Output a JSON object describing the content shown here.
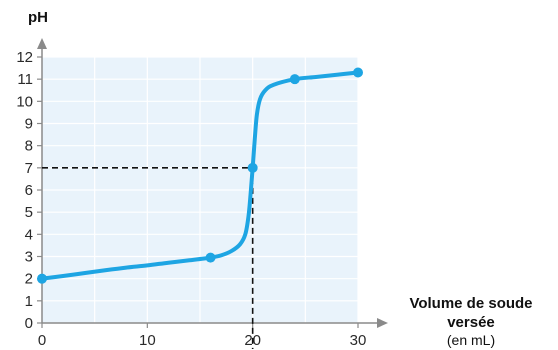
{
  "chart_data": {
    "type": "line",
    "ylabel": "pH",
    "xlabel_lines": [
      "Volume de soude",
      "versée",
      "(en mL)"
    ],
    "xlim": [
      0,
      30
    ],
    "ylim": [
      0,
      12
    ],
    "x_ticks": [
      0,
      10,
      20,
      30
    ],
    "y_ticks": [
      0,
      1,
      2,
      3,
      4,
      5,
      6,
      7,
      8,
      9,
      10,
      11,
      12
    ],
    "grid": true,
    "series": [
      {
        "curve": [
          [
            0,
            2.0
          ],
          [
            2,
            2.12
          ],
          [
            4,
            2.25
          ],
          [
            6,
            2.38
          ],
          [
            8,
            2.5
          ],
          [
            10,
            2.6
          ],
          [
            12,
            2.72
          ],
          [
            14,
            2.83
          ],
          [
            16,
            2.95
          ],
          [
            17,
            3.05
          ],
          [
            18,
            3.25
          ],
          [
            18.8,
            3.55
          ],
          [
            19.3,
            4.0
          ],
          [
            19.6,
            4.8
          ],
          [
            19.8,
            5.8
          ],
          [
            20,
            7.0
          ],
          [
            20.2,
            8.3
          ],
          [
            20.4,
            9.4
          ],
          [
            20.7,
            10.1
          ],
          [
            21.2,
            10.5
          ],
          [
            22,
            10.75
          ],
          [
            24,
            11.0
          ],
          [
            26,
            11.1
          ],
          [
            28,
            11.2
          ],
          [
            30,
            11.3
          ]
        ],
        "markers": [
          [
            0,
            2
          ],
          [
            16,
            2.95
          ],
          [
            20,
            7
          ],
          [
            24,
            11
          ],
          [
            30,
            11.3
          ]
        ],
        "color": "#1ea5e3"
      }
    ],
    "equivalence": {
      "x": 20,
      "y": 7
    },
    "colors": {
      "plot_background": "#e9f3fb",
      "grid": "#ffffff",
      "axis": "#8a8a8a",
      "dashed": "#111111"
    }
  }
}
